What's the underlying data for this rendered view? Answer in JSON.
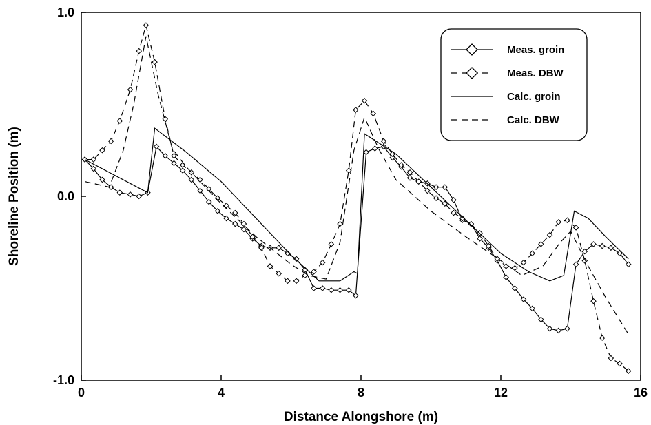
{
  "chart_data": {
    "type": "line",
    "title": "",
    "xlabel": "Distance Alongshore (m)",
    "ylabel": "Shoreline Position (m)",
    "xlim": [
      0,
      16
    ],
    "ylim": [
      -1.0,
      1.0
    ],
    "x_ticks": [
      0,
      4,
      8,
      12,
      16
    ],
    "x_tick_labels": [
      "0",
      "4",
      "8",
      "12",
      "16"
    ],
    "y_ticks": [
      -1.0,
      0.0,
      1.0
    ],
    "y_tick_labels": [
      "-1.0",
      "0.0",
      "1.0"
    ],
    "grid": false,
    "legend_position": "top-right",
    "series": [
      {
        "name": "Meas. groin",
        "line": "solid",
        "marker": "diamond",
        "x": [
          0.1,
          0.35,
          0.6,
          0.85,
          1.1,
          1.4,
          1.65,
          1.9,
          2.15,
          2.4,
          2.65,
          2.9,
          3.15,
          3.4,
          3.65,
          3.9,
          4.15,
          4.4,
          4.65,
          4.9,
          5.15,
          5.4,
          5.65,
          5.9,
          6.15,
          6.4,
          6.65,
          6.9,
          7.15,
          7.4,
          7.65,
          7.85,
          8.15,
          8.4,
          8.65,
          8.9,
          9.15,
          9.4,
          9.65,
          9.9,
          10.15,
          10.4,
          10.65,
          10.9,
          11.15,
          11.4,
          11.65,
          11.9,
          12.15,
          12.4,
          12.65,
          12.9,
          13.15,
          13.4,
          13.65,
          13.9,
          14.15,
          14.4,
          14.65,
          14.9,
          15.15,
          15.4,
          15.65
        ],
        "y": [
          0.2,
          0.15,
          0.09,
          0.05,
          0.02,
          0.01,
          0.0,
          0.02,
          0.27,
          0.22,
          0.18,
          0.14,
          0.09,
          0.03,
          -0.03,
          -0.08,
          -0.12,
          -0.15,
          -0.18,
          -0.23,
          -0.27,
          -0.28,
          -0.28,
          -0.31,
          -0.34,
          -0.4,
          -0.5,
          -0.5,
          -0.51,
          -0.51,
          -0.51,
          -0.54,
          0.24,
          0.26,
          0.27,
          0.21,
          0.16,
          0.1,
          0.08,
          0.07,
          0.05,
          0.05,
          -0.02,
          -0.13,
          -0.15,
          -0.23,
          -0.28,
          -0.35,
          -0.44,
          -0.5,
          -0.56,
          -0.61,
          -0.67,
          -0.72,
          -0.73,
          -0.72,
          -0.37,
          -0.3,
          -0.26,
          -0.27,
          -0.28,
          -0.31,
          -0.37
        ]
      },
      {
        "name": "Meas. DBW",
        "line": "dashed",
        "marker": "diamond",
        "x": [
          0.1,
          0.35,
          0.6,
          0.85,
          1.1,
          1.4,
          1.65,
          1.85,
          2.1,
          2.4,
          2.65,
          2.9,
          3.15,
          3.4,
          3.65,
          3.9,
          4.15,
          4.4,
          4.65,
          4.9,
          5.15,
          5.4,
          5.65,
          5.9,
          6.15,
          6.4,
          6.65,
          6.9,
          7.15,
          7.4,
          7.65,
          7.85,
          8.1,
          8.35,
          8.65,
          8.9,
          9.15,
          9.4,
          9.65,
          9.9,
          10.15,
          10.4,
          10.65,
          10.9,
          11.15,
          11.4,
          11.65,
          11.9,
          12.15,
          12.4,
          12.65,
          12.9,
          13.15,
          13.4,
          13.65,
          13.9,
          14.15,
          14.4,
          14.65,
          14.9,
          15.15,
          15.4,
          15.65
        ],
        "y": [
          0.2,
          0.2,
          0.25,
          0.3,
          0.41,
          0.58,
          0.79,
          0.93,
          0.73,
          0.42,
          0.22,
          0.17,
          0.13,
          0.09,
          0.04,
          -0.01,
          -0.05,
          -0.09,
          -0.15,
          -0.22,
          -0.28,
          -0.38,
          -0.42,
          -0.46,
          -0.46,
          -0.43,
          -0.41,
          -0.36,
          -0.26,
          -0.15,
          0.14,
          0.47,
          0.52,
          0.45,
          0.3,
          0.23,
          0.17,
          0.13,
          0.08,
          0.03,
          -0.01,
          -0.04,
          -0.09,
          -0.12,
          -0.15,
          -0.2,
          -0.27,
          -0.34,
          -0.38,
          -0.39,
          -0.36,
          -0.31,
          -0.26,
          -0.21,
          -0.14,
          -0.13,
          -0.17,
          -0.35,
          -0.57,
          -0.77,
          -0.88,
          -0.91,
          -0.95
        ]
      },
      {
        "name": "Calc. groin",
        "line": "solid",
        "marker": "none",
        "x": [
          0.1,
          1.9,
          2.1,
          3.0,
          4.0,
          5.0,
          6.0,
          6.8,
          7.4,
          7.8,
          7.9,
          8.1,
          9.0,
          10.0,
          11.0,
          12.0,
          12.8,
          13.4,
          13.8,
          14.1,
          14.5,
          15.0,
          15.65
        ],
        "y": [
          0.2,
          0.02,
          0.37,
          0.24,
          0.08,
          -0.12,
          -0.32,
          -0.46,
          -0.46,
          -0.41,
          -0.42,
          0.34,
          0.23,
          0.05,
          -0.13,
          -0.31,
          -0.41,
          -0.46,
          -0.43,
          -0.08,
          -0.12,
          -0.22,
          -0.34
        ]
      },
      {
        "name": "Calc. DBW",
        "line": "dashed",
        "marker": "none",
        "x": [
          0.1,
          0.8,
          1.2,
          1.5,
          1.85,
          2.2,
          2.6,
          3.0,
          4.0,
          5.0,
          6.0,
          6.5,
          7.0,
          7.4,
          7.8,
          8.1,
          8.5,
          9.0,
          10.0,
          11.0,
          12.0,
          12.6,
          13.2,
          13.7,
          14.0,
          14.5,
          15.0,
          15.65
        ],
        "y": [
          0.08,
          0.05,
          0.25,
          0.5,
          0.87,
          0.55,
          0.26,
          0.16,
          -0.04,
          -0.22,
          -0.37,
          -0.43,
          -0.45,
          -0.25,
          0.25,
          0.43,
          0.26,
          0.09,
          -0.08,
          -0.22,
          -0.35,
          -0.43,
          -0.38,
          -0.25,
          -0.19,
          -0.38,
          -0.55,
          -0.75
        ]
      }
    ]
  }
}
